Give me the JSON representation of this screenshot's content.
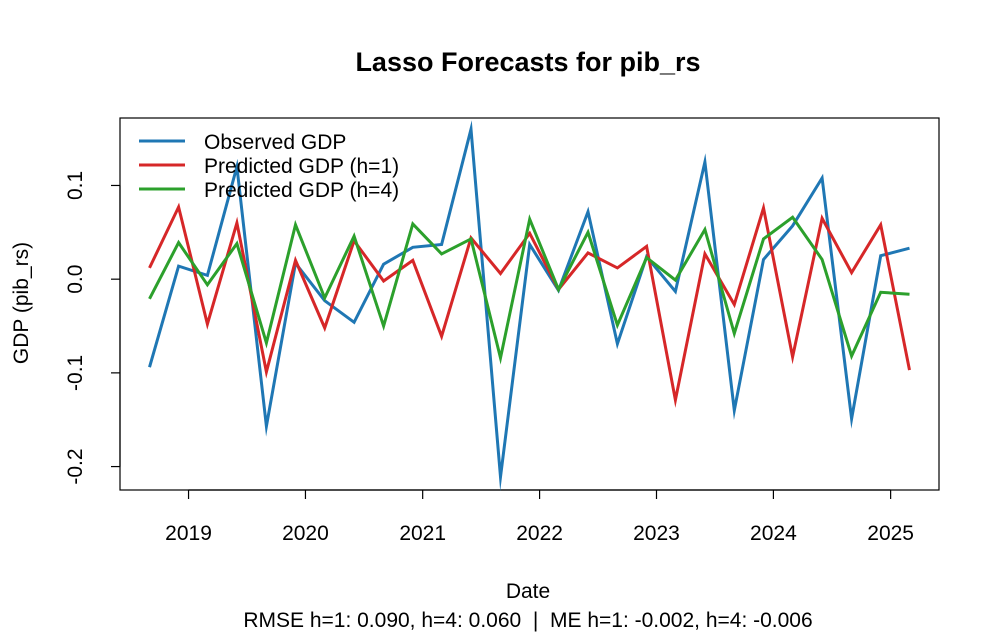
{
  "chart_data": {
    "type": "line",
    "title": "Lasso Forecasts for pib_rs",
    "xlabel": "Date",
    "ylabel": "GDP (pib_rs)",
    "subtitle": "RMSE h=1: 0.090, h=4: 0.060  |  ME h=1: -0.002, h=4: -0.006",
    "ylim": [
      -0.225,
      0.172
    ],
    "xlim": [
      "2018-06-01",
      "2025-06-01"
    ],
    "grid": false,
    "legend_position": "top-left",
    "x": [
      "2018-09-01",
      "2018-12-01",
      "2019-03-01",
      "2019-06-01",
      "2019-09-01",
      "2019-12-01",
      "2020-03-01",
      "2020-06-01",
      "2020-09-01",
      "2020-12-01",
      "2021-03-01",
      "2021-06-01",
      "2021-09-01",
      "2021-12-01",
      "2022-03-01",
      "2022-06-01",
      "2022-09-01",
      "2022-12-01",
      "2023-03-01",
      "2023-06-01",
      "2023-09-01",
      "2023-12-01",
      "2024-03-01",
      "2024-06-01",
      "2024-09-01",
      "2024-12-01",
      "2025-03-01"
    ],
    "x_ticks": [
      {
        "label": "2019",
        "date": "2019-01-01"
      },
      {
        "label": "2020",
        "date": "2020-01-01"
      },
      {
        "label": "2021",
        "date": "2021-01-01"
      },
      {
        "label": "2022",
        "date": "2022-01-01"
      },
      {
        "label": "2023",
        "date": "2023-01-01"
      },
      {
        "label": "2024",
        "date": "2024-01-01"
      },
      {
        "label": "2025",
        "date": "2025-01-01"
      }
    ],
    "y_ticks": [
      {
        "label": "-0.2",
        "value": -0.2
      },
      {
        "label": "-0.1",
        "value": -0.1
      },
      {
        "label": "0.0",
        "value": 0.0
      },
      {
        "label": "0.1",
        "value": 0.1
      }
    ],
    "series": [
      {
        "name": "Observed GDP",
        "color": "#1f77b4",
        "values": [
          -0.094,
          0.014,
          0.004,
          0.12,
          -0.157,
          0.017,
          -0.023,
          -0.046,
          0.016,
          0.034,
          0.037,
          0.16,
          -0.211,
          0.037,
          -0.012,
          0.072,
          -0.069,
          0.024,
          -0.013,
          0.125,
          -0.14,
          0.021,
          0.057,
          0.108,
          -0.149,
          0.025,
          0.033
        ]
      },
      {
        "name": "Predicted GDP (h=1)",
        "color": "#d62728",
        "values": [
          0.012,
          0.077,
          -0.048,
          0.06,
          -0.099,
          0.02,
          -0.052,
          0.041,
          -0.002,
          0.02,
          -0.061,
          0.044,
          0.006,
          0.049,
          -0.011,
          0.028,
          0.012,
          0.035,
          -0.129,
          0.027,
          -0.027,
          0.076,
          -0.083,
          0.065,
          0.007,
          0.058,
          -0.097
        ]
      },
      {
        "name": "Predicted GDP (h=4)",
        "color": "#2ca02c",
        "values": [
          -0.021,
          0.039,
          -0.006,
          0.038,
          -0.068,
          0.058,
          -0.02,
          0.046,
          -0.05,
          0.059,
          0.027,
          0.043,
          -0.084,
          0.064,
          -0.011,
          0.05,
          -0.049,
          0.023,
          -0.001,
          0.053,
          -0.058,
          0.043,
          0.066,
          0.021,
          -0.082,
          -0.014,
          -0.016
        ]
      }
    ]
  }
}
